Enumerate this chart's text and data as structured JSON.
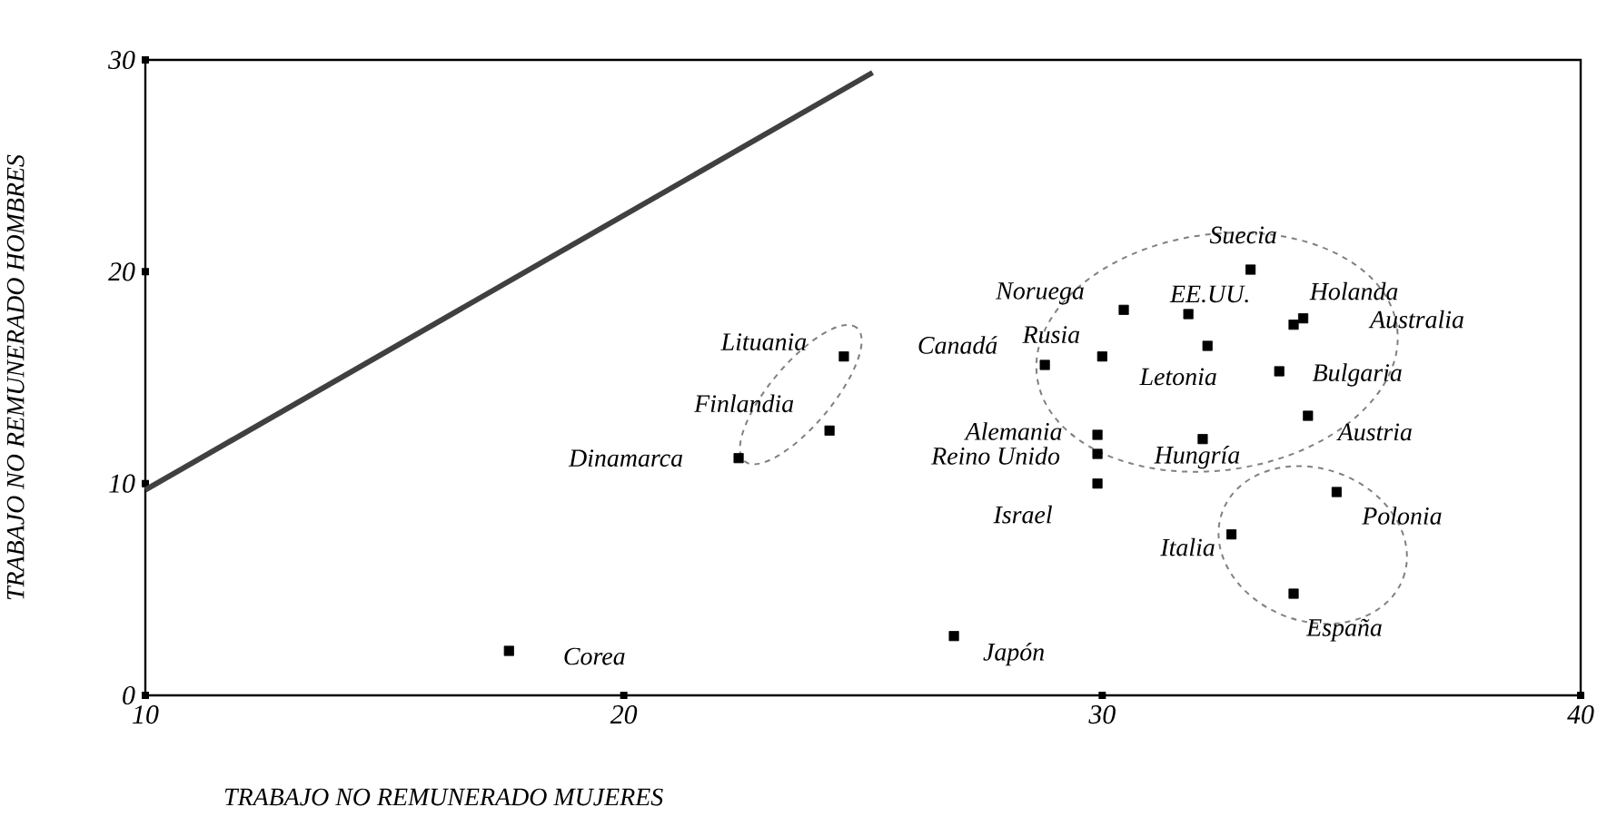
{
  "chart_data": {
    "type": "scatter",
    "xlabel": "TRABAJO NO REMUNERADO MUJERES",
    "ylabel": "TRABAJO NO REMUNERADO HOMBRES",
    "xlim": [
      10,
      40
    ],
    "ylim": [
      0,
      30
    ],
    "xticks": [
      10,
      20,
      30,
      40
    ],
    "yticks": [
      0,
      10,
      20,
      30
    ],
    "grid": false,
    "marker": "square",
    "series": [
      {
        "color": "#000000",
        "x": [
          17.6,
          26.9,
          22.4,
          24.3,
          24.6,
          28.8,
          30.0,
          30.45,
          31.8,
          32.2,
          33.1,
          34.2,
          34.0,
          33.7,
          34.3,
          29.9,
          29.9,
          29.9,
          32.1,
          34.9,
          32.7,
          34.0
        ],
        "values": [
          2.1,
          2.8,
          11.2,
          12.5,
          16.0,
          15.6,
          16.0,
          18.2,
          18.0,
          16.5,
          20.1,
          17.8,
          17.5,
          15.3,
          13.2,
          12.3,
          11.4,
          10.0,
          12.1,
          9.6,
          7.6,
          4.8
        ]
      },
      {
        "type": "line",
        "color": "#404040",
        "marker": "none",
        "line_style": "solid",
        "x": [
          10,
          25.2
        ],
        "values": [
          9.7,
          29.4
        ]
      }
    ],
    "annotations": [
      {
        "text": "Corea",
        "x": 17.6,
        "y": 2.1
      },
      {
        "text": "Japón",
        "x": 26.9,
        "y": 2.8
      },
      {
        "text": "Dinamarca",
        "x": 22.4,
        "y": 11.2
      },
      {
        "text": "Finlandia",
        "x": 24.3,
        "y": 12.5
      },
      {
        "text": "Lituania",
        "x": 24.6,
        "y": 16.0
      },
      {
        "text": "Canadá",
        "x": 28.8,
        "y": 15.6
      },
      {
        "text": "Rusia",
        "x": 30.0,
        "y": 16.0
      },
      {
        "text": "Noruega",
        "x": 30.45,
        "y": 18.2
      },
      {
        "text": "EE.UU.",
        "x": 31.8,
        "y": 18.0
      },
      {
        "text": "Letonia",
        "x": 32.2,
        "y": 16.5
      },
      {
        "text": "Suecia",
        "x": 33.1,
        "y": 20.1
      },
      {
        "text": "Holanda",
        "x": 34.2,
        "y": 17.8
      },
      {
        "text": "Australia",
        "x": 34.0,
        "y": 17.5
      },
      {
        "text": "Bulgaria",
        "x": 33.7,
        "y": 15.3
      },
      {
        "text": "Austria",
        "x": 34.3,
        "y": 13.2
      },
      {
        "text": "Alemania",
        "x": 29.9,
        "y": 12.3
      },
      {
        "text": "Reino Unido",
        "x": 29.9,
        "y": 11.4
      },
      {
        "text": "Israel",
        "x": 29.9,
        "y": 10.0
      },
      {
        "text": "Hungría",
        "x": 32.1,
        "y": 12.1
      },
      {
        "text": "Polonia",
        "x": 34.9,
        "y": 9.6
      },
      {
        "text": "Italia",
        "x": 32.7,
        "y": 7.6
      },
      {
        "text": "España",
        "x": 34.0,
        "y": 4.8
      }
    ]
  }
}
